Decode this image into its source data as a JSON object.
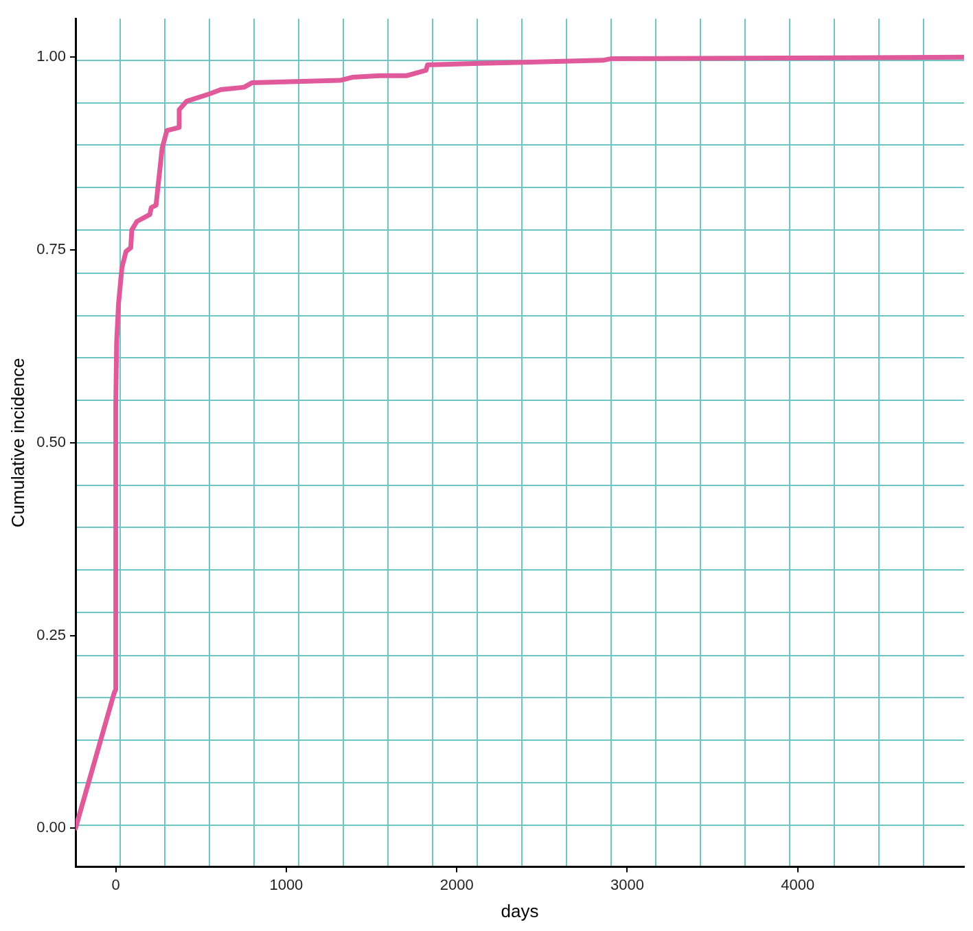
{
  "chart_data": {
    "type": "line",
    "xlabel": "days",
    "ylabel": "Cumulative incidence",
    "xlim": [
      -236,
      4976
    ],
    "ylim": [
      -0.05,
      1.05
    ],
    "xticks": [
      0,
      1000,
      2000,
      3000,
      4000,
      {
        "value": 24,
        "label": null
      },
      {
        "value": 286,
        "label": null
      },
      {
        "value": 548,
        "label": null
      },
      {
        "value": 810,
        "label": null
      },
      {
        "value": 1072,
        "label": null
      },
      {
        "value": 1334,
        "label": null
      },
      {
        "value": 1596,
        "label": null
      },
      {
        "value": 1858,
        "label": null
      },
      {
        "value": 2120,
        "label": null
      },
      {
        "value": 2382,
        "label": null
      },
      {
        "value": 2644,
        "label": null
      },
      {
        "value": 2906,
        "label": null
      },
      {
        "value": 3168,
        "label": null
      },
      {
        "value": 3430,
        "label": null
      },
      {
        "value": 3692,
        "label": null
      },
      {
        "value": 3954,
        "label": null
      },
      {
        "value": 4216,
        "label": null
      },
      {
        "value": 4478,
        "label": null
      },
      {
        "value": 4740,
        "label": null
      }
    ],
    "yticks": [
      {
        "value": 0,
        "label": "0.00"
      },
      {
        "value": 0.25,
        "label": "0.25"
      },
      {
        "value": 0.5,
        "label": "0.50"
      },
      {
        "value": 0.75,
        "label": "0.75"
      },
      {
        "value": 1,
        "label": "1.00"
      },
      {
        "value": 0.004,
        "label": null
      },
      {
        "value": 0.059,
        "label": null
      },
      {
        "value": 0.114,
        "label": null
      },
      {
        "value": 0.169,
        "label": null
      },
      {
        "value": 0.224,
        "label": null
      },
      {
        "value": 0.28,
        "label": null
      },
      {
        "value": 0.335,
        "label": null
      },
      {
        "value": 0.39,
        "label": null
      },
      {
        "value": 0.445,
        "label": null
      },
      {
        "value": 0.5,
        "label": null
      },
      {
        "value": 0.555,
        "label": null
      },
      {
        "value": 0.61,
        "label": null
      },
      {
        "value": 0.665,
        "label": null
      },
      {
        "value": 0.72,
        "label": null
      },
      {
        "value": 0.776,
        "label": null
      },
      {
        "value": 0.831,
        "label": null
      },
      {
        "value": 0.886,
        "label": null
      },
      {
        "value": 0.941,
        "label": null
      },
      {
        "value": 0.996,
        "label": null
      }
    ],
    "grid": true,
    "legend": false,
    "marker": "none",
    "line_style": "solid",
    "series": [
      {
        "color": "#e05a9b",
        "x": [
          -236,
          -10,
          0,
          0,
          5,
          16,
          36,
          60,
          88,
          94,
          124,
          200,
          208,
          236,
          272,
          300,
          372,
          372,
          416,
          544,
          616,
          752,
          800,
          1316,
          1388,
          1544,
          1704,
          1820,
          1828,
          2136,
          2856,
          2904,
          4976
        ],
        "values": [
          0,
          0.175,
          0.18,
          0.55,
          0.63,
          0.68,
          0.727,
          0.748,
          0.753,
          0.776,
          0.787,
          0.796,
          0.805,
          0.808,
          0.882,
          0.905,
          0.909,
          0.932,
          0.943,
          0.952,
          0.958,
          0.961,
          0.967,
          0.97,
          0.974,
          0.976,
          0.976,
          0.983,
          0.99,
          0.992,
          0.996,
          0.998,
          1.0
        ]
      }
    ]
  }
}
